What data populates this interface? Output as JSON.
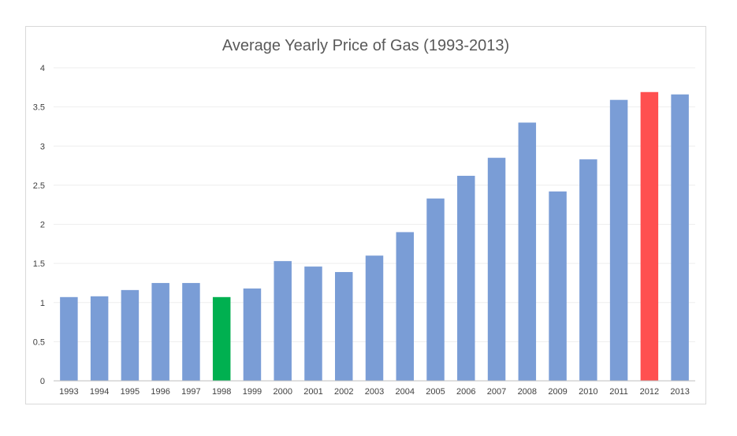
{
  "chart_data": {
    "type": "bar",
    "title": "Average Yearly Price of Gas (1993-2013)",
    "xlabel": "",
    "ylabel": "",
    "ylim": [
      0,
      4
    ],
    "yticks": [
      "0",
      "0.5",
      "1",
      "1.5",
      "2",
      "2.5",
      "3",
      "3.5",
      "4"
    ],
    "grid": true,
    "legend": "none",
    "categories": [
      "1993",
      "1994",
      "1995",
      "1996",
      "1997",
      "1998",
      "1999",
      "2000",
      "2001",
      "2002",
      "2003",
      "2004",
      "2005",
      "2006",
      "2007",
      "2008",
      "2009",
      "2010",
      "2011",
      "2012",
      "2013"
    ],
    "values": [
      1.07,
      1.08,
      1.16,
      1.25,
      1.25,
      1.07,
      1.18,
      1.53,
      1.46,
      1.39,
      1.6,
      1.9,
      2.33,
      2.62,
      2.85,
      3.3,
      2.42,
      2.83,
      3.59,
      3.69,
      3.66
    ],
    "colors": {
      "default": "#7a9dd6",
      "lowest": "#00b050",
      "highest": "#ff5050"
    },
    "highlight": {
      "lowest": "1998",
      "highest": "2012"
    }
  }
}
